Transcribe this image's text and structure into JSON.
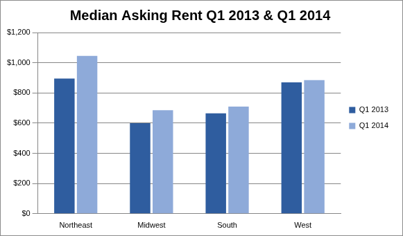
{
  "chart_data": {
    "type": "bar",
    "title": "Median Asking Rent Q1 2013 & Q1 2014",
    "categories": [
      "Northeast",
      "Midwest",
      "South",
      "West"
    ],
    "series": [
      {
        "name": "Q1 2013",
        "color": "#2f5d9f",
        "values": [
          895,
          600,
          665,
          870
        ]
      },
      {
        "name": "Q1 2014",
        "color": "#8eaad9",
        "values": [
          1045,
          685,
          710,
          885
        ]
      }
    ],
    "ylim": [
      0,
      1200
    ],
    "yticks": [
      {
        "value": 0,
        "label": "$0"
      },
      {
        "value": 200,
        "label": "$200"
      },
      {
        "value": 400,
        "label": "$400"
      },
      {
        "value": 600,
        "label": "$600"
      },
      {
        "value": 800,
        "label": "$800"
      },
      {
        "value": 1000,
        "label": "$1,000"
      },
      {
        "value": 1200,
        "label": "$1,200"
      }
    ],
    "grid": true,
    "legend": "right"
  }
}
